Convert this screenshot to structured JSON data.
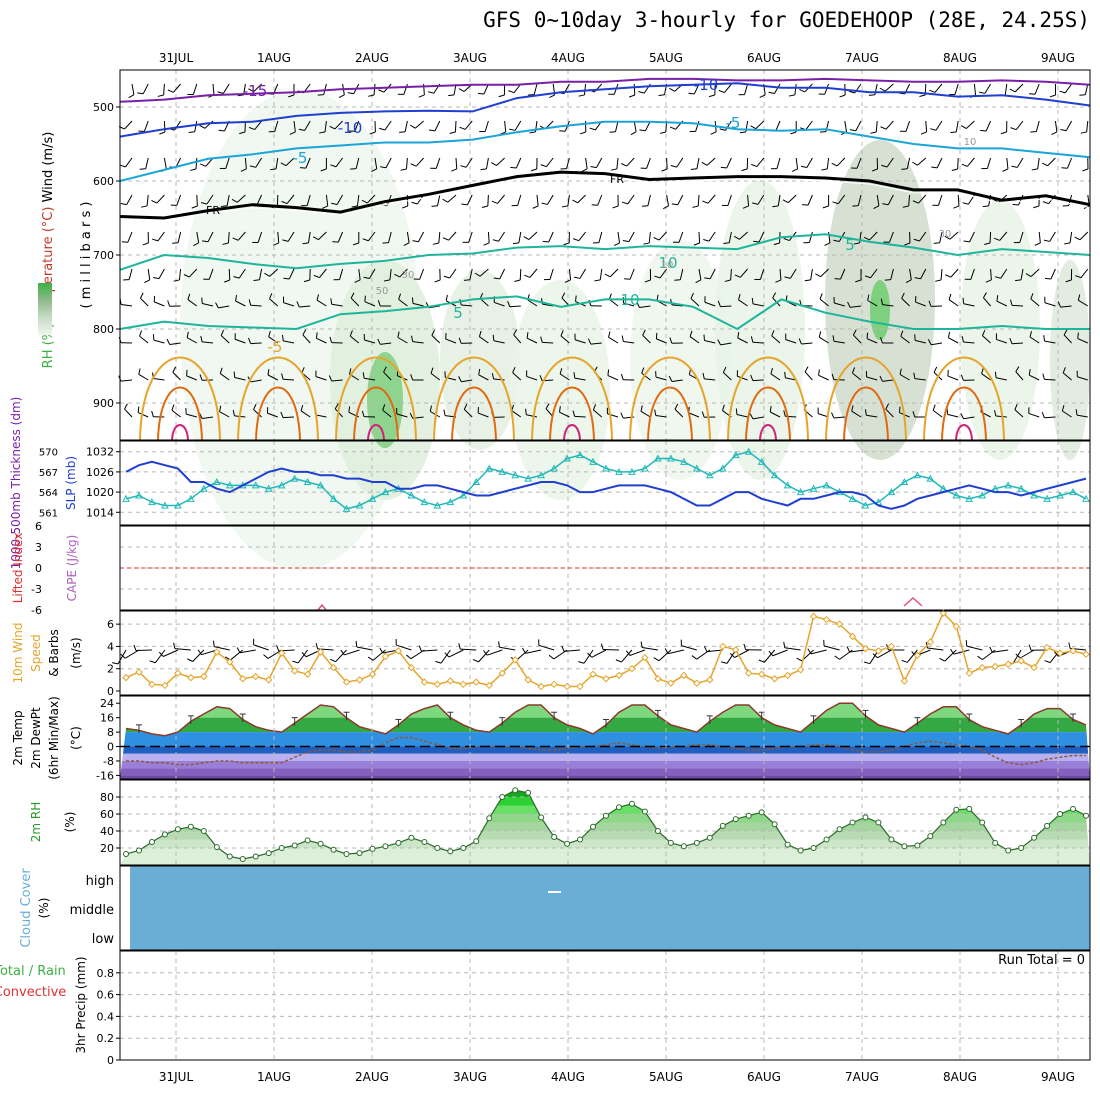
{
  "title": "GFS 0~10day 3-hourly for GOEDEHOOP (28E, 24.25S)",
  "colors": {
    "rh_green": "#3cb043",
    "t_purple": "#7a1fa8",
    "t_blue": "#1f3fd0",
    "t_cyan": "#1aa5d8",
    "t_teal": "#1fb59b",
    "t_orange": "#e6a42a",
    "t_darkorange": "#e06a10",
    "t_magenta": "#d0207a",
    "freezing": "#000000",
    "slp": "#1f3fd0",
    "thickness": "#20b8b8",
    "wind10": "#e6a42a",
    "cloud": "#6aaed6",
    "precip_total": "#3cb043",
    "precip_conv": "#e03030"
  },
  "chart_data": [
    {
      "panel": "upper-air",
      "type": "heatmap",
      "ylabel_parts": [
        "RH (%)",
        "Temperature (°C)",
        "Wind (m/s)"
      ],
      "ylabel2": "( m i l l i b a r s )",
      "y_ticks": [
        "500",
        "600",
        "700",
        "800",
        "900"
      ],
      "ylim": [
        950,
        450
      ],
      "freezing_label": "FR",
      "contour_labels": [
        "-15",
        "-10",
        "-10",
        "-5",
        "-5",
        "5",
        "5",
        "10",
        "-5",
        "10",
        "10",
        "30",
        "50",
        "10",
        "30"
      ],
      "isotherms": [
        {
          "name": "-15",
          "color": "#7a1fa8",
          "p": [
            493,
            490,
            484,
            482,
            480,
            476,
            474,
            472,
            470,
            470,
            466,
            466,
            462,
            462,
            464,
            464,
            462,
            464,
            466,
            466,
            464,
            466,
            470
          ]
        },
        {
          "name": "-10",
          "color": "#1f3fd0",
          "p": [
            540,
            530,
            522,
            520,
            512,
            508,
            506,
            505,
            506,
            488,
            480,
            476,
            472,
            470,
            468,
            474,
            474,
            480,
            480,
            486,
            484,
            490,
            498
          ]
        },
        {
          "name": "-5",
          "color": "#1aa5d8",
          "p": [
            600,
            585,
            570,
            564,
            556,
            552,
            548,
            548,
            544,
            534,
            526,
            520,
            520,
            522,
            530,
            532,
            530,
            540,
            550,
            556,
            556,
            562,
            568
          ]
        },
        {
          "name": "5",
          "color": "#1fb59b",
          "p": [
            720,
            700,
            704,
            712,
            718,
            712,
            708,
            700,
            698,
            690,
            688,
            692,
            688,
            690,
            692,
            676,
            672,
            682,
            690,
            700,
            692,
            696,
            700
          ]
        },
        {
          "name": "10",
          "color": "#1fb59b",
          "p": [
            800,
            790,
            796,
            798,
            800,
            780,
            776,
            770,
            760,
            756,
            770,
            760,
            760,
            770,
            800,
            760,
            778,
            790,
            800,
            800,
            796,
            800,
            800
          ]
        }
      ],
      "freezing_level": [
        648,
        650,
        640,
        632,
        636,
        642,
        628,
        618,
        606,
        594,
        588,
        590,
        598,
        596,
        594,
        594,
        596,
        600,
        612,
        612,
        626,
        620,
        632
      ],
      "rh_levels": [
        "10",
        "30",
        "50",
        "70",
        "90"
      ]
    },
    {
      "panel": "thickness-slp",
      "type": "line",
      "ylabel_left": "1000-500mb Thickness (dm)",
      "ylabel_right": "SLP (mb)",
      "y_ticks_left": [
        "570",
        "567",
        "564",
        "561"
      ],
      "y_ticks_right": [
        "1032",
        "1026",
        "1020",
        "1014"
      ],
      "ylim_slp": [
        1012,
        1034
      ],
      "series": [
        {
          "name": "SLP (mb)",
          "values": [
            1026,
            1028,
            1029,
            1028,
            1027,
            1023,
            1023,
            1021,
            1020,
            1022,
            1024,
            1026,
            1027,
            1026,
            1026,
            1025,
            1025,
            1024,
            1024,
            1023,
            1023,
            1021,
            1021,
            1022,
            1022,
            1021,
            1020,
            1019,
            1019,
            1020,
            1021,
            1022,
            1023,
            1023,
            1022,
            1020,
            1020,
            1021,
            1022,
            1022,
            1022,
            1021,
            1020,
            1018,
            1016,
            1016,
            1018,
            1020,
            1020,
            1018,
            1017,
            1016,
            1018,
            1018,
            1019,
            1020,
            1020,
            1019,
            1016,
            1015,
            1016,
            1018,
            1019,
            1020,
            1021,
            1022,
            1021,
            1020,
            1020,
            1019,
            1020,
            1021,
            1022,
            1023,
            1024
          ]
        },
        {
          "name": "1000-500mb Thickness (dm)",
          "values": [
            1018,
            1019,
            1017,
            1016,
            1016,
            1018,
            1021,
            1023,
            1022,
            1022,
            1022,
            1021,
            1022,
            1024,
            1023,
            1022,
            1018,
            1015,
            1016,
            1018,
            1020,
            1021,
            1019,
            1017,
            1016,
            1017,
            1019,
            1023,
            1027,
            1026,
            1025,
            1024,
            1025,
            1027,
            1030,
            1031,
            1029,
            1027,
            1026,
            1026,
            1027,
            1030,
            1030,
            1029,
            1027,
            1025,
            1027,
            1031,
            1032,
            1029,
            1025,
            1022,
            1020,
            1021,
            1022,
            1020,
            1018,
            1016,
            1017,
            1020,
            1023,
            1025,
            1024,
            1021,
            1019,
            1018,
            1019,
            1021,
            1022,
            1021,
            1019,
            1018,
            1019,
            1020,
            1018
          ]
        }
      ]
    },
    {
      "panel": "lifted-index-cape",
      "type": "line",
      "ylabel_left": "Lifted Index",
      "ylabel_right": "CAPE (J/kg)",
      "y_ticks": [
        "6",
        "3",
        "0",
        "-3",
        "-6"
      ],
      "ylim": [
        -6,
        6
      ],
      "reference_line": 0
    },
    {
      "panel": "wind10m",
      "type": "line",
      "ylabel": "10m Wind Speed & Barbs (m/s)",
      "y_ticks": [
        "6",
        "4",
        "2",
        "0"
      ],
      "ylim": [
        0,
        7
      ],
      "series": [
        {
          "name": "10m Wind Speed",
          "values": [
            1.2,
            1.7,
            0.6,
            0.5,
            1.6,
            1.2,
            1.3,
            3.5,
            2.6,
            1.1,
            1.3,
            1.0,
            3.4,
            1.8,
            1.5,
            3.5,
            2.1,
            0.8,
            1.0,
            1.5,
            3.1,
            3.6,
            2.1,
            0.8,
            0.6,
            0.9,
            0.6,
            0.8,
            0.5,
            1.6,
            2.8,
            1.0,
            0.4,
            0.6,
            0.4,
            0.4,
            1.5,
            1.1,
            1.4,
            2.0,
            3.0,
            1.1,
            0.7,
            1.4,
            0.7,
            1.0,
            4.0,
            3.7,
            1.6,
            1.5,
            1.1,
            1.4,
            1.9,
            6.7,
            6.4,
            6.0,
            4.9,
            3.8,
            3.6,
            4.0,
            0.9,
            3.2,
            4.4,
            7.0,
            5.8,
            1.6,
            2.1,
            2.2,
            2.4,
            2.7,
            2.1,
            3.9,
            3.4,
            3.6,
            3.3
          ]
        }
      ]
    },
    {
      "panel": "temperature",
      "type": "area",
      "ylabel": "2m Temp 2m DewPt (6hr Min/Max) (°C)",
      "y_ticks": [
        "24",
        "16",
        "8",
        "0",
        "-8",
        "-16"
      ],
      "ylim": [
        -18,
        28
      ],
      "series": [
        {
          "name": "2m Temp",
          "values": [
            10,
            9,
            7,
            6,
            8,
            14,
            18,
            22,
            21,
            15,
            11,
            9,
            8,
            13,
            18,
            23,
            22,
            16,
            11,
            9,
            7,
            12,
            18,
            21,
            23,
            16,
            12,
            9,
            8,
            13,
            19,
            23,
            23,
            16,
            12,
            10,
            7,
            12,
            19,
            23,
            23,
            17,
            12,
            10,
            8,
            14,
            19,
            23,
            23,
            16,
            12,
            10,
            8,
            14,
            20,
            24,
            24,
            17,
            12,
            10,
            8,
            13,
            18,
            22,
            22,
            15,
            11,
            9,
            7,
            12,
            18,
            21,
            21,
            15,
            12
          ]
        },
        {
          "name": "2m DewPt",
          "values": [
            -8,
            -8,
            -9,
            -9,
            -10,
            -10,
            -9,
            -8,
            -8,
            -9,
            -9,
            -9,
            -9,
            -6,
            -3,
            -2,
            -2,
            -3,
            -3,
            -2,
            2,
            5,
            5,
            3,
            1,
            -1,
            -1,
            0,
            0,
            0,
            0,
            -1,
            -2,
            -2,
            -1,
            0,
            0,
            1,
            2,
            1,
            0,
            -1,
            0,
            0,
            1,
            1,
            0,
            -1,
            -2,
            -2,
            -1,
            0,
            0,
            1,
            1,
            0,
            -2,
            -3,
            -3,
            -2,
            0,
            2,
            3,
            2,
            1,
            0,
            -2,
            -6,
            -9,
            -10,
            -9,
            -7,
            -6,
            -5,
            -5
          ]
        }
      ]
    },
    {
      "panel": "rh2m",
      "type": "area",
      "ylabel": "2m RH (%)",
      "y_ticks": [
        "80",
        "60",
        "40",
        "20"
      ],
      "ylim": [
        0,
        100
      ],
      "series": [
        {
          "name": "2m RH",
          "values": [
            13,
            17,
            27,
            36,
            42,
            45,
            40,
            21,
            10,
            7,
            10,
            14,
            20,
            23,
            29,
            25,
            18,
            13,
            14,
            19,
            22,
            26,
            32,
            27,
            20,
            16,
            20,
            28,
            55,
            80,
            88,
            85,
            56,
            33,
            25,
            30,
            45,
            58,
            68,
            72,
            63,
            40,
            26,
            22,
            26,
            32,
            46,
            54,
            58,
            62,
            48,
            24,
            17,
            20,
            30,
            42,
            50,
            56,
            50,
            30,
            22,
            23,
            34,
            50,
            65,
            66,
            50,
            26,
            17,
            20,
            32,
            46,
            60,
            66,
            58
          ]
        }
      ]
    },
    {
      "panel": "cloud-cover",
      "type": "heatmap",
      "ylabel": "Cloud Cover (%)",
      "y_ticks": [
        "high",
        "middle",
        "low"
      ]
    },
    {
      "panel": "precip",
      "type": "bar",
      "ylabel_parts": [
        "Total / Rain",
        "Convective",
        "3hr Precip (mm)"
      ],
      "y_ticks": [
        "0.8",
        "0.6",
        "0.4",
        "0.2",
        "0"
      ],
      "ylim": [
        0,
        1.0
      ],
      "run_total": "Run Total = 0"
    }
  ],
  "x_axis": {
    "date_labels": [
      "31JUL",
      "1AUG",
      "2AUG",
      "3AUG",
      "4AUG",
      "5AUG",
      "6AUG",
      "7AUG",
      "8AUG",
      "9AUG"
    ],
    "n_steps": 75
  }
}
